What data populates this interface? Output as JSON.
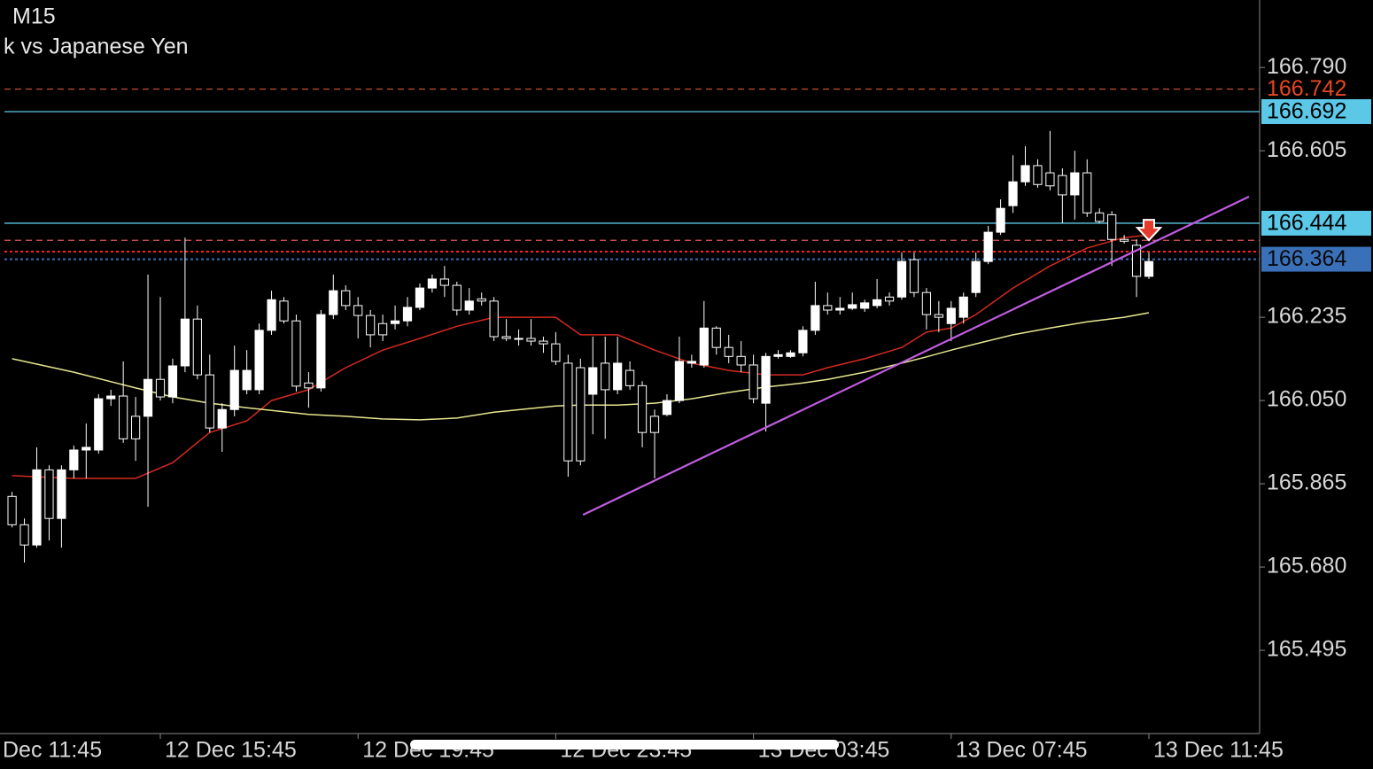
{
  "chart_data": {
    "type": "candlestick",
    "title": "M15",
    "subtitle": "k vs Japanese Yen",
    "up_color": "#ffffff",
    "down_color": "#000000",
    "open": [
      165.837,
      165.774,
      165.729,
      165.896,
      165.788,
      165.896,
      165.94,
      165.94,
      166.054,
      166.06,
      166.015,
      166.015,
      166.097,
      166.058,
      166.127,
      166.231,
      166.107,
      165.989,
      166.03,
      166.074,
      166.074,
      166.206,
      166.271,
      166.227,
      166.089,
      166.078,
      166.241,
      166.294,
      166.261,
      166.239,
      166.221,
      166.221,
      166.227,
      166.257,
      166.3,
      166.32,
      166.306,
      166.251,
      166.276,
      166.271,
      166.192,
      166.188,
      166.188,
      166.182,
      166.176,
      166.133,
      166.123,
      166.064,
      166.133,
      166.074,
      166.117,
      166.083,
      166.015,
      166.019,
      166.05,
      166.133,
      166.129,
      166.211,
      166.168,
      166.148,
      166.129,
      166.044,
      166.148,
      166.148,
      166.156,
      166.206,
      166.261,
      166.251,
      166.255,
      166.255,
      166.261,
      166.28,
      166.28,
      166.363,
      166.29,
      166.241,
      166.221,
      166.235,
      166.29,
      166.359,
      166.424,
      166.483,
      166.536,
      166.572,
      166.556,
      166.55,
      166.507,
      166.556,
      166.467,
      166.463,
      166.408,
      166.395,
      166.326
    ],
    "high": [
      165.847,
      165.788,
      165.946,
      165.906,
      165.906,
      165.95,
      165.999,
      166.064,
      166.074,
      166.137,
      166.058,
      166.33,
      166.28,
      166.143,
      166.412,
      166.261,
      166.152,
      166.044,
      166.172,
      166.162,
      166.221,
      166.294,
      166.28,
      166.241,
      166.113,
      166.251,
      166.33,
      166.306,
      166.28,
      166.251,
      166.241,
      166.261,
      166.28,
      166.31,
      166.33,
      166.349,
      166.314,
      166.3,
      166.29,
      166.28,
      166.231,
      166.208,
      166.231,
      166.192,
      166.202,
      166.152,
      166.143,
      166.192,
      166.192,
      166.192,
      166.137,
      166.093,
      166.03,
      166.064,
      166.192,
      166.152,
      166.271,
      166.215,
      166.196,
      166.182,
      166.152,
      166.156,
      166.162,
      166.162,
      166.215,
      166.314,
      166.29,
      166.28,
      166.29,
      166.274,
      166.32,
      166.29,
      166.379,
      166.379,
      166.3,
      166.271,
      166.271,
      166.29,
      166.379,
      166.438,
      166.497,
      166.595,
      166.615,
      166.586,
      166.649,
      166.566,
      166.605,
      166.586,
      166.477,
      166.471,
      166.418,
      166.408,
      166.379
    ],
    "low": [
      165.768,
      165.69,
      165.723,
      165.739,
      165.723,
      165.877,
      165.877,
      165.932,
      166.038,
      165.956,
      165.916,
      165.814,
      166.05,
      166.044,
      166.113,
      166.097,
      165.979,
      165.936,
      166.015,
      166.064,
      166.064,
      166.196,
      166.221,
      166.07,
      166.034,
      166.07,
      166.231,
      166.251,
      166.188,
      166.168,
      166.182,
      166.208,
      166.215,
      166.251,
      166.29,
      166.28,
      166.239,
      166.241,
      166.261,
      166.182,
      166.182,
      166.172,
      166.172,
      166.156,
      166.129,
      165.881,
      165.906,
      165.975,
      165.965,
      166.064,
      166.074,
      165.946,
      165.877,
      166.015,
      166.044,
      166.123,
      166.123,
      166.152,
      166.133,
      166.113,
      166.044,
      165.981,
      166.143,
      166.145,
      166.148,
      166.196,
      166.241,
      166.241,
      166.251,
      166.247,
      166.255,
      166.261,
      166.274,
      166.28,
      166.208,
      166.202,
      166.182,
      166.221,
      166.28,
      166.353,
      166.418,
      166.467,
      166.527,
      166.523,
      166.517,
      166.444,
      166.452,
      166.458,
      166.444,
      166.349,
      166.399,
      166.28,
      166.32
    ],
    "close": [
      165.774,
      165.729,
      165.896,
      165.788,
      165.896,
      165.94,
      165.946,
      166.054,
      166.06,
      165.965,
      165.965,
      166.097,
      166.058,
      166.127,
      166.231,
      166.107,
      165.989,
      166.03,
      166.117,
      166.117,
      166.206,
      166.274,
      166.227,
      166.082,
      166.078,
      166.241,
      166.294,
      166.261,
      166.239,
      166.196,
      166.196,
      166.227,
      166.257,
      166.3,
      166.32,
      166.306,
      166.251,
      166.271,
      166.271,
      166.192,
      166.188,
      166.188,
      166.182,
      166.176,
      166.137,
      165.916,
      165.916,
      166.123,
      166.074,
      166.133,
      166.083,
      165.979,
      165.979,
      166.05,
      166.137,
      166.137,
      166.211,
      166.168,
      166.148,
      166.129,
      166.054,
      166.148,
      166.152,
      166.156,
      166.206,
      166.261,
      166.251,
      166.255,
      166.263,
      166.267,
      166.274,
      166.271,
      166.359,
      166.29,
      166.241,
      166.235,
      166.255,
      166.28,
      166.359,
      166.424,
      166.477,
      166.536,
      166.572,
      166.53,
      166.527,
      166.507,
      166.556,
      166.467,
      166.448,
      166.408,
      166.404,
      166.326,
      166.359
    ],
    "xlim": [
      -0.975,
      100.96
    ],
    "ylim": [
      165.31,
      166.94
    ],
    "yticks": [
      {
        "value": 166.79,
        "label": "166.790"
      },
      {
        "value": 166.605,
        "label": "166.605"
      },
      {
        "value": 166.235,
        "label": "166.235"
      },
      {
        "value": 166.05,
        "label": "166.050"
      },
      {
        "value": 165.865,
        "label": "165.865"
      },
      {
        "value": 165.68,
        "label": "165.680"
      },
      {
        "value": 165.495,
        "label": "165.495"
      }
    ],
    "xticks": [
      {
        "value": -4,
        "label": "Dec 11:45"
      },
      {
        "value": 12,
        "label": "12 Dec 15:45"
      },
      {
        "value": 28,
        "label": "12 Dec 19:45"
      },
      {
        "value": 44,
        "label": "12 Dec 23:45"
      },
      {
        "value": 60,
        "label": "13 Dec 03:45"
      },
      {
        "value": 76,
        "label": "13 Dec 07:45"
      },
      {
        "value": 92,
        "label": "13 Dec 11:45"
      }
    ],
    "moving_averages": [
      {
        "color": "#d42a1f",
        "x": [
          0,
          5,
          10,
          13,
          16,
          19,
          21,
          24,
          27,
          30,
          33,
          36,
          39,
          44,
          46,
          49,
          52,
          55,
          58,
          61,
          64,
          66,
          69,
          72,
          74,
          76,
          78,
          81,
          84,
          87,
          90,
          92
        ],
        "values": [
          165.883,
          165.877,
          165.877,
          165.912,
          165.979,
          166.005,
          166.05,
          166.074,
          166.123,
          166.162,
          166.188,
          166.215,
          166.235,
          166.235,
          166.196,
          166.196,
          166.162,
          166.133,
          166.117,
          166.107,
          166.107,
          166.123,
          166.143,
          166.168,
          166.202,
          166.211,
          166.241,
          166.3,
          166.349,
          166.389,
          166.412,
          166.418
        ]
      },
      {
        "color": "#e6e690",
        "x": [
          0,
          5,
          10,
          13,
          16,
          19,
          21,
          24,
          27,
          30,
          33,
          36,
          39,
          44,
          46,
          49,
          52,
          55,
          58,
          61,
          64,
          66,
          69,
          72,
          74,
          76,
          78,
          81,
          84,
          87,
          90,
          92
        ],
        "values": [
          166.143,
          166.113,
          166.078,
          166.058,
          166.044,
          166.034,
          166.028,
          166.019,
          166.015,
          166.009,
          166.007,
          166.011,
          166.024,
          166.038,
          166.04,
          166.04,
          166.044,
          166.054,
          166.068,
          166.08,
          166.089,
          166.097,
          166.113,
          166.133,
          166.147,
          166.162,
          166.176,
          166.196,
          166.211,
          166.225,
          166.235,
          166.245
        ]
      }
    ],
    "trendline": {
      "color": "#c05ce0",
      "x": [
        46.2,
        100.1
      ],
      "values": [
        165.796,
        166.503
      ]
    },
    "levels": [
      {
        "value": 166.742,
        "label": "166.742",
        "color": "#b84a2e",
        "label_color": "#e8471f",
        "style": "dashed",
        "box": false
      },
      {
        "value": 166.692,
        "label": "166.692",
        "color": "#5cc8e8",
        "label_color": "#000000",
        "style": "solid",
        "box": true
      },
      {
        "value": 166.444,
        "label": "166.444",
        "color": "#5cc8e8",
        "label_color": "#000000",
        "style": "solid",
        "box": true
      },
      {
        "value": 166.406,
        "color": "#e05a5a",
        "style": "dashed"
      },
      {
        "value": 166.381,
        "color": "#ff2020",
        "style": "dotted"
      },
      {
        "value": 166.364,
        "label": "166.364",
        "color": "#3a70b8",
        "label_color": "#0a0a0a",
        "style": "dotted",
        "box": true
      }
    ],
    "signal": {
      "x": 92,
      "value": 166.424,
      "color": "#e53b2c"
    }
  }
}
